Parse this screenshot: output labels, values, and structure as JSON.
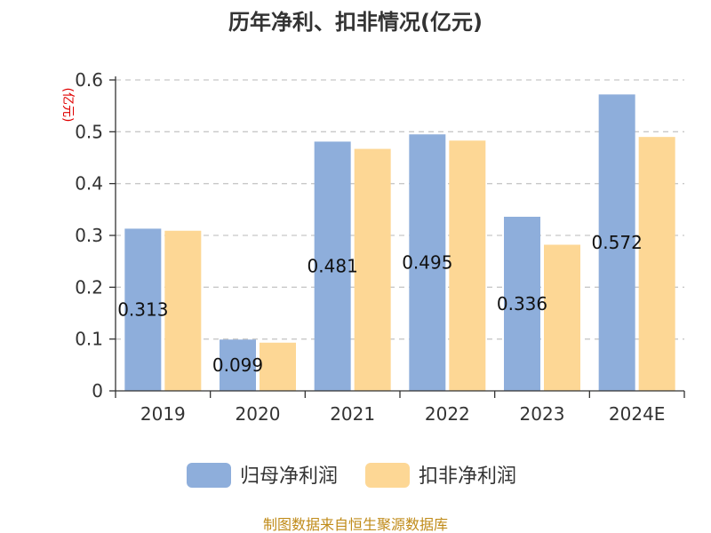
{
  "chart_data": {
    "type": "bar",
    "title": "历年净利、扣非情况(亿元)",
    "ylabel": "(亿元)",
    "categories": [
      "2019",
      "2020",
      "2021",
      "2022",
      "2023",
      "2024E"
    ],
    "series": [
      {
        "name": "归母净利润",
        "color": "#8eaedb",
        "values": [
          0.313,
          0.099,
          0.481,
          0.495,
          0.336,
          0.572
        ]
      },
      {
        "name": "扣非净利润",
        "color": "#fdd795",
        "values": [
          0.309,
          0.093,
          0.467,
          0.483,
          0.282,
          0.49
        ]
      }
    ],
    "data_labels": [
      "0.313",
      "0.099",
      "0.481",
      "0.495",
      "0.336",
      "0.572"
    ],
    "ylim": [
      0,
      0.6
    ],
    "yticks": [
      "0",
      "0.1",
      "0.2",
      "0.3",
      "0.4",
      "0.5",
      "0.6"
    ],
    "grid": true,
    "legend_position": "bottom"
  },
  "footer": "制图数据来自恒生聚源数据库"
}
